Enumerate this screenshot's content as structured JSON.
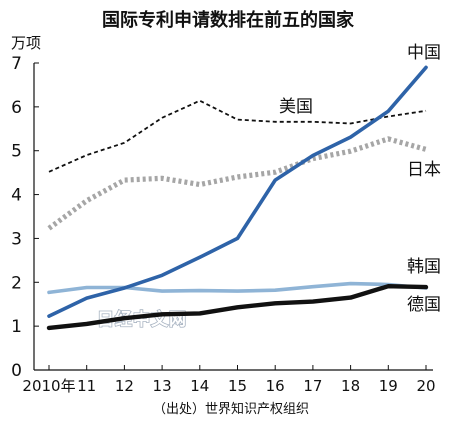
{
  "chart_data": {
    "type": "line",
    "title": "国际专利申请数排在前五的国家",
    "unit_label": "万项",
    "source": "（出处）世界知识产权组织",
    "watermark": "日经中文网",
    "x": [
      "2010年",
      "11",
      "12",
      "13",
      "14",
      "15",
      "16",
      "17",
      "18",
      "19",
      "20"
    ],
    "ylim": [
      0,
      7
    ],
    "yticks": [
      "0",
      "1",
      "2",
      "3",
      "4",
      "5",
      "6",
      "7"
    ],
    "grid": false,
    "series": [
      {
        "name": "中国",
        "style": "solid",
        "color": "#2e63a8",
        "values": [
          1.23,
          1.64,
          1.87,
          2.16,
          2.57,
          3.0,
          4.33,
          4.89,
          5.31,
          5.9,
          6.9
        ]
      },
      {
        "name": "美国",
        "style": "dashed",
        "color": "#111111",
        "values": [
          4.52,
          4.9,
          5.18,
          5.75,
          6.14,
          5.71,
          5.66,
          5.66,
          5.62,
          5.78,
          5.91
        ]
      },
      {
        "name": "日本",
        "style": "dotted-thick",
        "color": "#a6a6a6",
        "values": [
          3.23,
          3.86,
          4.33,
          4.37,
          4.23,
          4.4,
          4.51,
          4.82,
          4.99,
          5.27,
          5.03
        ]
      },
      {
        "name": "韩国",
        "style": "solid",
        "color": "#8fb4d6",
        "values": [
          1.77,
          1.88,
          1.88,
          1.8,
          1.81,
          1.8,
          1.82,
          1.9,
          1.97,
          1.95,
          1.87
        ]
      },
      {
        "name": "德国",
        "style": "solid-thick",
        "color": "#111111",
        "values": [
          0.96,
          1.05,
          1.18,
          1.27,
          1.29,
          1.43,
          1.52,
          1.56,
          1.65,
          1.91,
          1.89
        ]
      }
    ]
  }
}
